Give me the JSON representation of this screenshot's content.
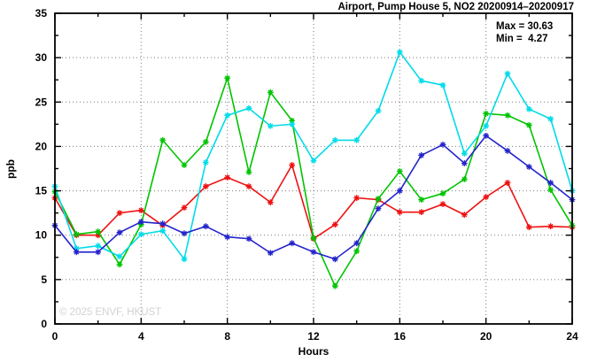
{
  "title": "Airport, Pump House 5, NO2 20200914–20200917",
  "stats": {
    "max_label": "Max = 30.63",
    "min_label": "Min =  4.27"
  },
  "watermark": "© 2025 ENVF, HKUST",
  "chart_data": {
    "type": "line",
    "title": "Airport, Pump House 5, NO2 20200914–20200917",
    "xlabel": "Hours",
    "ylabel": "ppb",
    "xlim": [
      0,
      24
    ],
    "ylim": [
      0,
      35
    ],
    "x_major_ticks": [
      0,
      4,
      8,
      12,
      16,
      20,
      24
    ],
    "x_minor_step": 2,
    "y_major_ticks": [
      0,
      5,
      10,
      15,
      20,
      25,
      30,
      35
    ],
    "y_minor_step": 2.5,
    "grid": true,
    "legend": "none",
    "marker": "asterisk",
    "max": 30.63,
    "min": 4.27,
    "x": [
      0,
      1,
      2,
      3,
      4,
      5,
      6,
      7,
      8,
      9,
      10,
      11,
      12,
      13,
      14,
      15,
      16,
      17,
      18,
      19,
      20,
      21,
      22,
      23,
      24
    ],
    "series": [
      {
        "name": "series-1-red",
        "color": "#ee1111",
        "values": [
          14.2,
          10.0,
          10.0,
          12.5,
          12.8,
          11.1,
          13.1,
          15.5,
          16.5,
          15.5,
          13.7,
          17.9,
          9.6,
          11.2,
          14.2,
          14.0,
          12.6,
          12.6,
          13.5,
          12.3,
          14.3,
          15.9,
          10.9,
          11.0,
          10.9
        ]
      },
      {
        "name": "series-2-green",
        "color": "#00c400",
        "values": [
          14.9,
          10.1,
          10.4,
          6.7,
          11.2,
          20.7,
          17.9,
          20.5,
          27.7,
          17.1,
          26.1,
          22.9,
          9.7,
          4.27,
          8.2,
          14.1,
          17.2,
          14.0,
          14.7,
          16.3,
          23.7,
          23.5,
          22.4,
          15.1,
          11.1
        ]
      },
      {
        "name": "series-3-cyan",
        "color": "#00dce8",
        "values": [
          15.5,
          8.5,
          8.8,
          7.6,
          10.1,
          10.5,
          7.3,
          18.2,
          23.5,
          24.3,
          22.3,
          22.5,
          18.4,
          20.7,
          20.7,
          24.0,
          30.63,
          27.4,
          26.9,
          19.2,
          22.3,
          28.2,
          24.2,
          23.1,
          15.0
        ]
      },
      {
        "name": "series-4-blue",
        "color": "#2424cc",
        "values": [
          11.1,
          8.1,
          8.1,
          10.3,
          11.5,
          11.3,
          10.2,
          11.0,
          9.8,
          9.6,
          8.0,
          9.1,
          8.1,
          7.3,
          9.1,
          13.0,
          15.0,
          19.0,
          20.2,
          18.1,
          21.2,
          19.5,
          17.7,
          15.9,
          14.0
        ]
      }
    ]
  }
}
